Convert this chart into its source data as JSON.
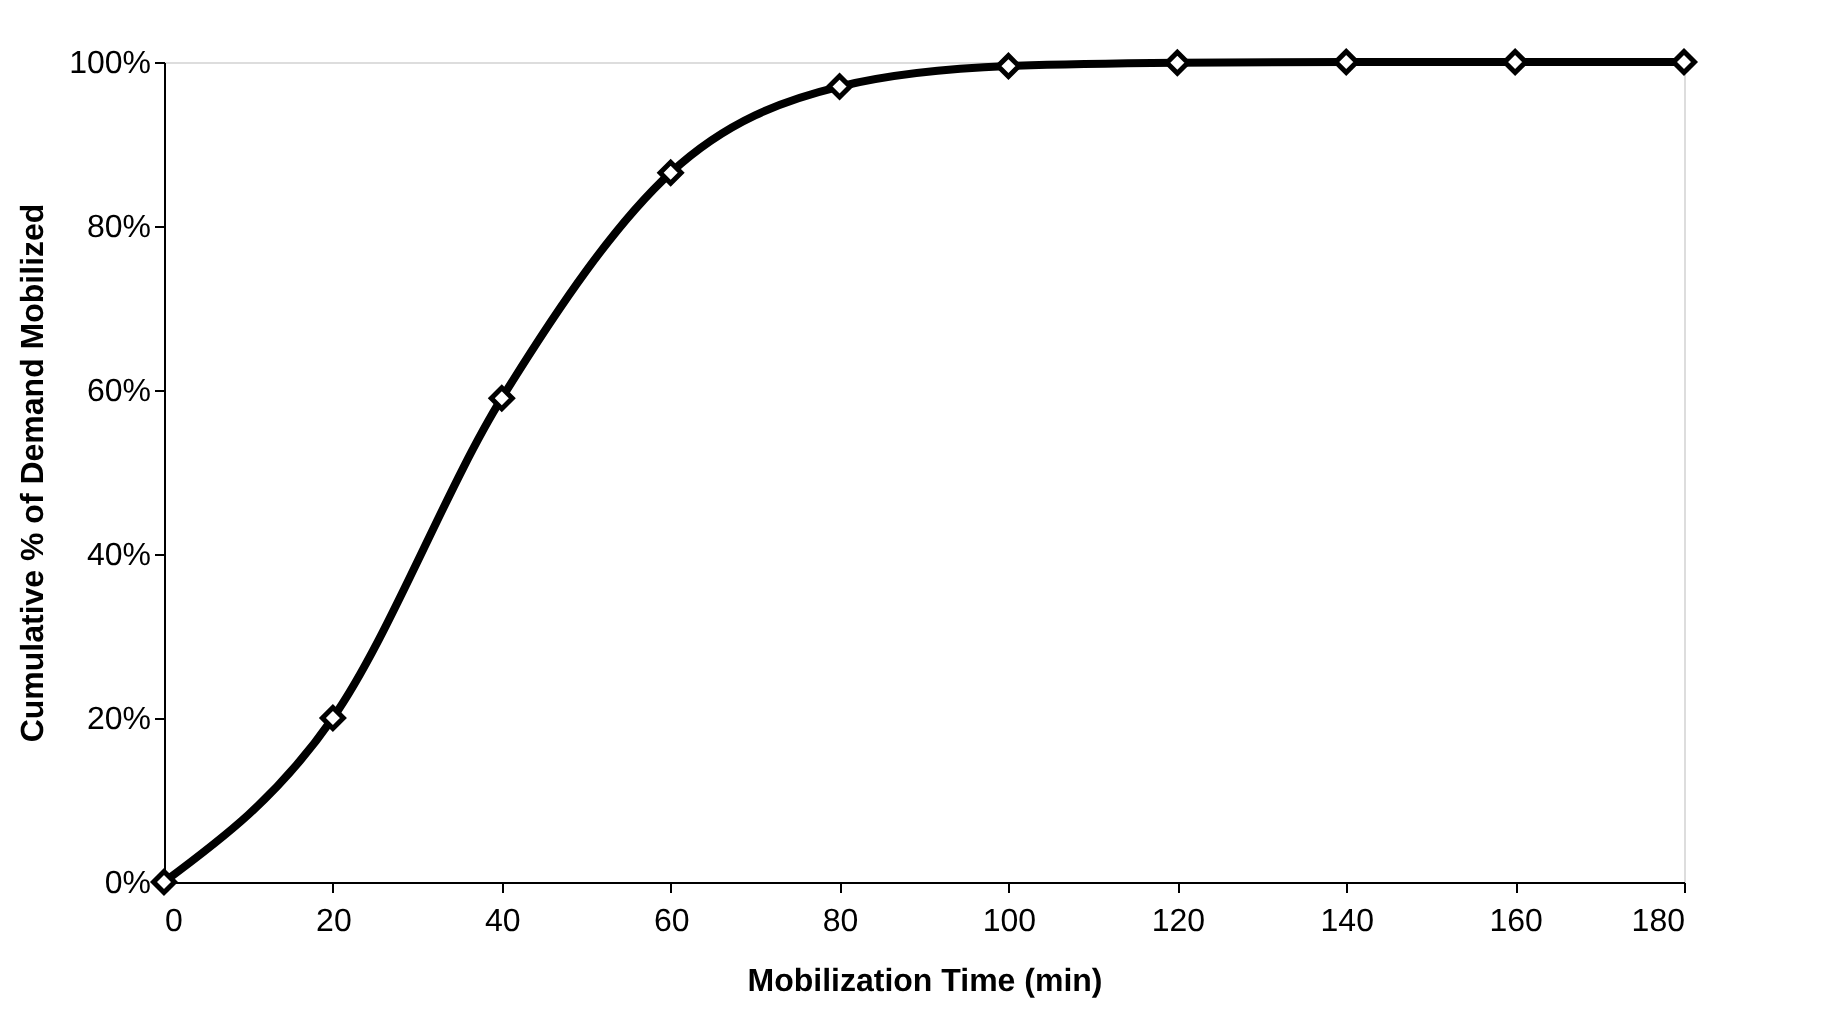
{
  "chart_data": {
    "type": "line",
    "xlabel": "Mobilization Time (min)",
    "ylabel": "Cumulative % of Demand Mobilized",
    "x": [
      0,
      20,
      40,
      60,
      80,
      100,
      120,
      140,
      160,
      180
    ],
    "series": [
      {
        "color": "#000000",
        "values": [
          0,
          20,
          59,
          86.5,
          97,
          99.5,
          99.9,
          100,
          100,
          100
        ]
      }
    ],
    "xlim": [
      0,
      180
    ],
    "xticks": [
      0,
      20,
      40,
      60,
      80,
      100,
      120,
      140,
      160,
      180
    ],
    "ylim": [
      0,
      100
    ],
    "yticks": [
      {
        "value": 0,
        "label": "0%"
      },
      {
        "value": 20,
        "label": "20%"
      },
      {
        "value": 40,
        "label": "40%"
      },
      {
        "value": 60,
        "label": "60%"
      },
      {
        "value": 80,
        "label": "80%"
      },
      {
        "value": 100,
        "label": "100%"
      }
    ],
    "grid": false,
    "marker": "diamond",
    "line_style": "solid"
  }
}
